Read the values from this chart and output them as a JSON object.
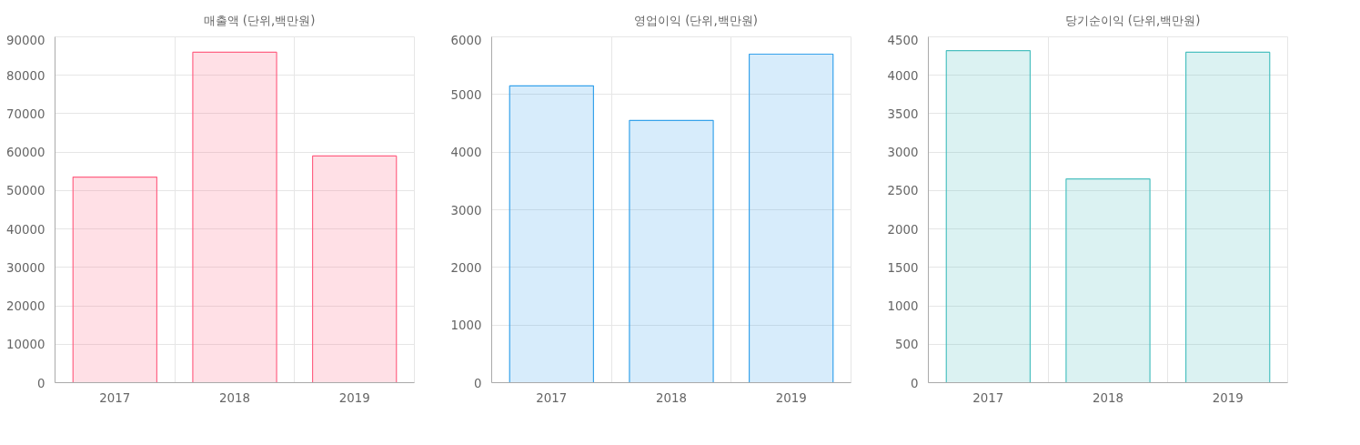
{
  "chart_data": [
    {
      "type": "bar",
      "categories": [
        "2017",
        "2018",
        "2019"
      ],
      "series": [
        {
          "name": "매출액 (단위,백만원)",
          "color": "#ff6384",
          "values": [
            53500,
            86000,
            59000
          ]
        }
      ],
      "ylim": [
        0,
        90000
      ],
      "yticks": [
        0,
        10000,
        20000,
        30000,
        40000,
        50000,
        60000,
        70000,
        80000,
        90000
      ],
      "grid": true,
      "legend": "top"
    },
    {
      "type": "bar",
      "categories": [
        "2017",
        "2018",
        "2019"
      ],
      "series": [
        {
          "name": "영업이익 (단위,백만원)",
          "color": "#36a2eb",
          "values": [
            5150,
            4550,
            5700
          ]
        }
      ],
      "ylim": [
        0,
        6000
      ],
      "yticks": [
        0,
        1000,
        2000,
        3000,
        4000,
        5000,
        6000
      ],
      "grid": true,
      "legend": "top"
    },
    {
      "type": "bar",
      "categories": [
        "2017",
        "2018",
        "2019"
      ],
      "series": [
        {
          "name": "당기순이익 (단위,백만원)",
          "color": "#4bc0c0",
          "values": [
            4320,
            2650,
            4300
          ]
        }
      ],
      "ylim": [
        0,
        4500
      ],
      "yticks": [
        0,
        500,
        1000,
        1500,
        2000,
        2500,
        3000,
        3500,
        4000,
        4500
      ],
      "grid": true,
      "legend": "top"
    }
  ]
}
